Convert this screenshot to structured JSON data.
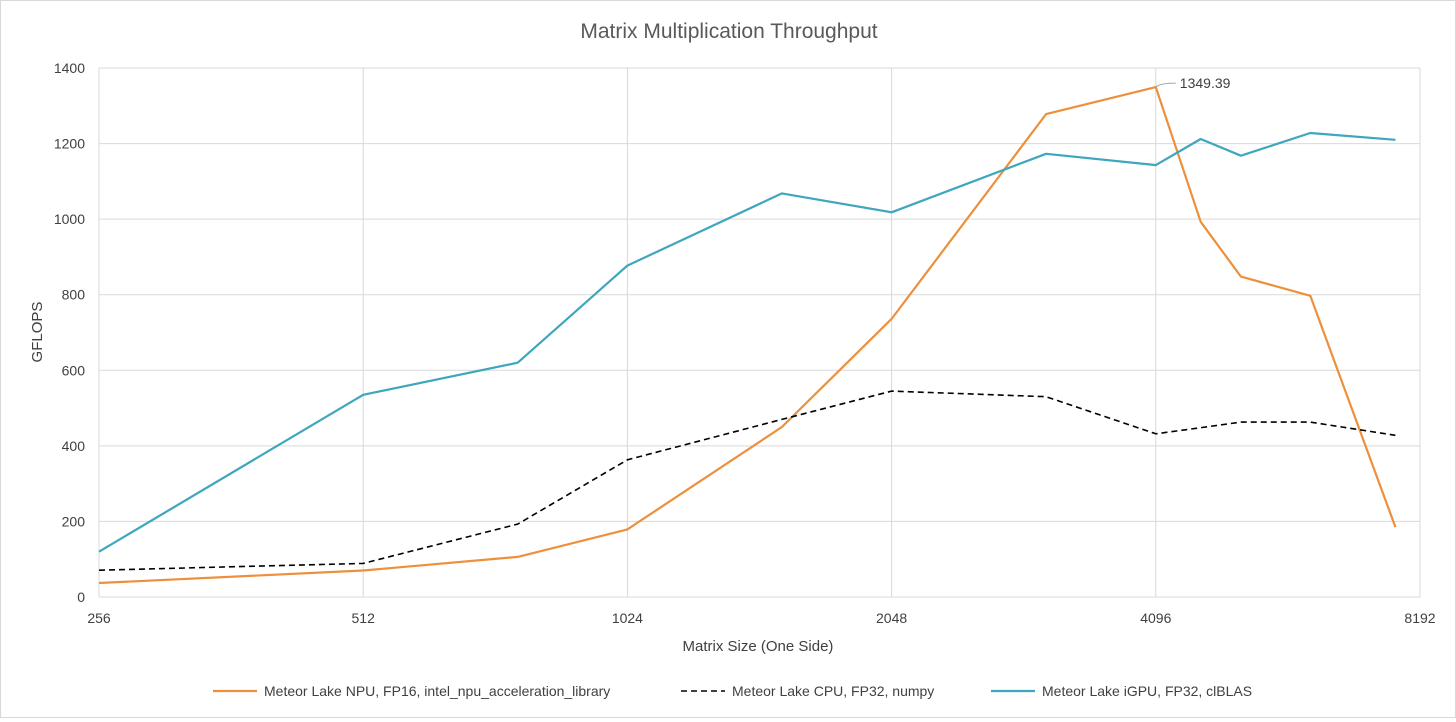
{
  "chart_data": {
    "type": "line",
    "title": "Matrix Multiplication Throughput",
    "xlabel": "Matrix Size (One Side)",
    "ylabel": "GFLOPS",
    "x_scale": "log2",
    "xlim": [
      256,
      8192
    ],
    "ylim": [
      0,
      1400
    ],
    "x_ticks": [
      256,
      512,
      1024,
      2048,
      4096,
      8192
    ],
    "y_ticks": [
      0,
      200,
      400,
      600,
      800,
      1000,
      1200,
      1400
    ],
    "grid": true,
    "legend_position": "bottom",
    "series": [
      {
        "name": "Meteor Lake NPU, FP16, intel_npu_acceleration_library",
        "color": "#ed8f3b",
        "dash": "solid",
        "x": [
          256,
          512,
          768,
          1024,
          1536,
          2048,
          3072,
          4096,
          4608,
          5120,
          6144,
          7680
        ],
        "y": [
          37,
          70,
          106,
          179,
          450,
          736,
          1278,
          1349.39,
          993,
          848,
          797,
          185
        ]
      },
      {
        "name": "Meteor Lake CPU, FP32, numpy",
        "color": "#000000",
        "dash": "dashed",
        "x": [
          256,
          512,
          768,
          1024,
          1536,
          2048,
          3072,
          4096,
          4608,
          5120,
          6144,
          7680
        ],
        "y": [
          71,
          89,
          193,
          363,
          470,
          545,
          530,
          432,
          448,
          463,
          463,
          428
        ]
      },
      {
        "name": "Meteor Lake iGPU, FP32, clBLAS",
        "color": "#3ea6bd",
        "dash": "solid",
        "x": [
          256,
          512,
          768,
          1024,
          1536,
          2048,
          3072,
          4096,
          4608,
          5120,
          6144,
          7680
        ],
        "y": [
          120,
          535,
          620,
          877,
          1068,
          1018,
          1173,
          1143,
          1212,
          1168,
          1228,
          1210
        ]
      }
    ],
    "annotations": [
      {
        "series": 0,
        "x": 4096,
        "y": 1349.39,
        "text": "1349.39"
      }
    ]
  }
}
